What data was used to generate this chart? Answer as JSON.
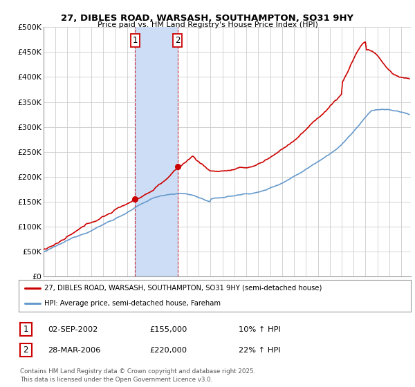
{
  "title": "27, DIBLES ROAD, WARSASH, SOUTHAMPTON, SO31 9HY",
  "subtitle": "Price paid vs. HM Land Registry's House Price Index (HPI)",
  "ylabel_ticks": [
    "£0",
    "£50K",
    "£100K",
    "£150K",
    "£200K",
    "£250K",
    "£300K",
    "£350K",
    "£400K",
    "£450K",
    "£500K"
  ],
  "ylim": [
    0,
    500000
  ],
  "xlim_start": 1995.0,
  "xlim_end": 2025.8,
  "purchase1_x": 2002.67,
  "purchase1_y": 155000,
  "purchase1_label": "1",
  "purchase2_x": 2006.24,
  "purchase2_y": 220000,
  "purchase2_label": "2",
  "shade_x1": 2002.67,
  "shade_x2": 2006.24,
  "legend_line1": "27, DIBLES ROAD, WARSASH, SOUTHAMPTON, SO31 9HY (semi-detached house)",
  "legend_line2": "HPI: Average price, semi-detached house, Fareham",
  "table_row1": [
    "1",
    "02-SEP-2002",
    "£155,000",
    "10% ↑ HPI"
  ],
  "table_row2": [
    "2",
    "28-MAR-2006",
    "£220,000",
    "22% ↑ HPI"
  ],
  "footer": "Contains HM Land Registry data © Crown copyright and database right 2025.\nThis data is licensed under the Open Government Licence v3.0.",
  "red_color": "#cc0000",
  "blue_color": "#6699cc",
  "shade_color": "#ccddf5",
  "bg_color": "#ffffff",
  "grid_color": "#cccccc"
}
